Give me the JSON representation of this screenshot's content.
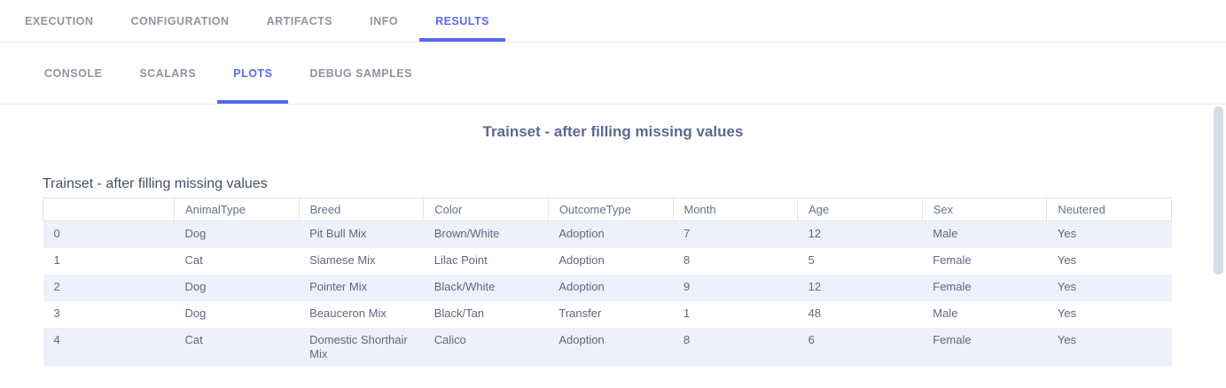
{
  "colors": {
    "accent": "#5a68f0",
    "tab_inactive": "#8f95a1",
    "title": "#5c6890",
    "caption": "#465062",
    "cell_text": "#5d6880",
    "header_text": "#68718a",
    "stripe": "#eef1f9",
    "border": "#dfe3ec",
    "divider": "#e9eaee",
    "scrollbar": "#d7dbe9"
  },
  "main_tabs": [
    {
      "label": "EXECUTION",
      "active": false
    },
    {
      "label": "CONFIGURATION",
      "active": false
    },
    {
      "label": "ARTIFACTS",
      "active": false
    },
    {
      "label": "INFO",
      "active": false
    },
    {
      "label": "RESULTS",
      "active": true
    }
  ],
  "sub_tabs": [
    {
      "label": "CONSOLE",
      "active": false
    },
    {
      "label": "SCALARS",
      "active": false
    },
    {
      "label": "PLOTS",
      "active": true
    },
    {
      "label": "DEBUG SAMPLES",
      "active": false
    }
  ],
  "plot": {
    "title": "Trainset - after filling missing values",
    "table": {
      "caption": "Trainset - after filling missing values",
      "columns": [
        "",
        "AnimalType",
        "Breed",
        "Color",
        "OutcomeType",
        "Month",
        "Age",
        "Sex",
        "Neutered"
      ],
      "rows": [
        [
          "0",
          "Dog",
          "Pit Bull Mix",
          "Brown/White",
          "Adoption",
          "7",
          "12",
          "Male",
          "Yes"
        ],
        [
          "1",
          "Cat",
          "Siamese Mix",
          "Lilac Point",
          "Adoption",
          "8",
          "5",
          "Female",
          "Yes"
        ],
        [
          "2",
          "Dog",
          "Pointer Mix",
          "Black/White",
          "Adoption",
          "9",
          "12",
          "Female",
          "Yes"
        ],
        [
          "3",
          "Dog",
          "Beauceron Mix",
          "Black/Tan",
          "Transfer",
          "1",
          "48",
          "Male",
          "Yes"
        ],
        [
          "4",
          "Cat",
          "Domestic Shorthair Mix",
          "Calico",
          "Adoption",
          "8",
          "6",
          "Female",
          "Yes"
        ]
      ]
    }
  }
}
